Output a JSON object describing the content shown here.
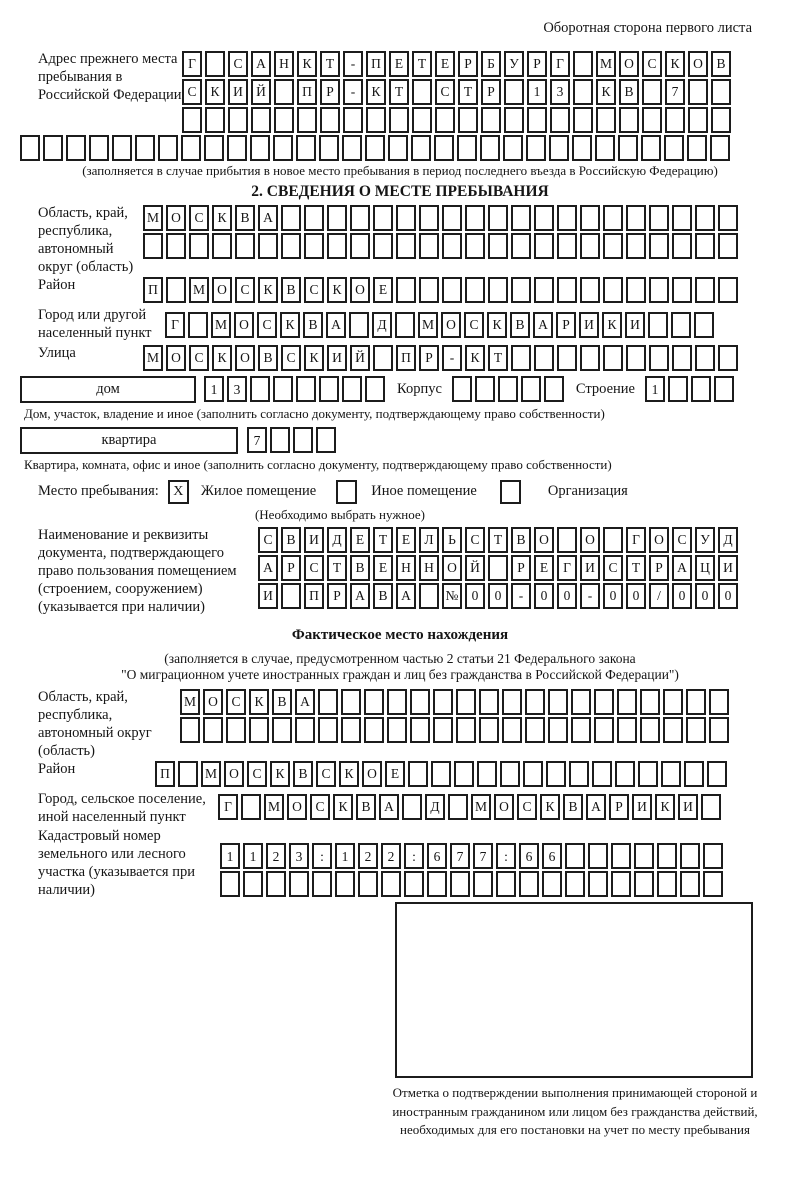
{
  "header": {
    "back_side_note": "Оборотная сторона первого листа"
  },
  "prev_address": {
    "label": "Адрес прежнего места пребывания в Российской Федерации",
    "rows": [
      [
        "Г",
        "",
        "С",
        "А",
        "Н",
        "К",
        "Т",
        "-",
        "П",
        "Е",
        "Т",
        "Е",
        "Р",
        "Б",
        "У",
        "Р",
        "Г",
        "",
        "М",
        "О",
        "С",
        "К",
        "О",
        "В"
      ],
      [
        "С",
        "К",
        "И",
        "Й",
        "",
        "П",
        "Р",
        "-",
        "К",
        "Т",
        "",
        "С",
        "Т",
        "Р",
        "",
        "1",
        "3",
        "",
        "К",
        "В",
        "",
        "7",
        "",
        ""
      ],
      [
        "",
        "",
        "",
        "",
        "",
        "",
        "",
        "",
        "",
        "",
        "",
        "",
        "",
        "",
        "",
        "",
        "",
        "",
        "",
        "",
        "",
        "",
        "",
        ""
      ]
    ],
    "overflow_row": [
      "",
      "",
      "",
      "",
      "",
      "",
      "",
      "",
      "",
      "",
      "",
      "",
      "",
      "",
      "",
      "",
      "",
      "",
      "",
      "",
      "",
      "",
      "",
      "",
      "",
      "",
      "",
      "",
      "",
      "",
      ""
    ],
    "note": "(заполняется в случае прибытия в новое место пребывания в период последнего въезда в Российскую Федерацию)"
  },
  "section2": {
    "title": "2. СВЕДЕНИЯ О МЕСТЕ ПРЕБЫВАНИЯ",
    "region": {
      "label": "Область, край, республика, автономный округ (область)",
      "rows": [
        [
          "М",
          "О",
          "С",
          "К",
          "В",
          "А",
          "",
          "",
          "",
          "",
          "",
          "",
          "",
          "",
          "",
          "",
          "",
          "",
          "",
          "",
          "",
          "",
          "",
          "",
          "",
          ""
        ],
        [
          "",
          "",
          "",
          "",
          "",
          "",
          "",
          "",
          "",
          "",
          "",
          "",
          "",
          "",
          "",
          "",
          "",
          "",
          "",
          "",
          "",
          "",
          "",
          "",
          "",
          ""
        ]
      ]
    },
    "district": {
      "label": "Район",
      "row": [
        "П",
        "",
        "М",
        "О",
        "С",
        "К",
        "В",
        "С",
        "К",
        "О",
        "Е",
        "",
        "",
        "",
        "",
        "",
        "",
        "",
        "",
        "",
        "",
        "",
        "",
        "",
        "",
        ""
      ]
    },
    "city": {
      "label": "Город или другой населенный пункт",
      "row": [
        "Г",
        "",
        "М",
        "О",
        "С",
        "К",
        "В",
        "А",
        "",
        "Д",
        "",
        "М",
        "О",
        "С",
        "К",
        "В",
        "А",
        "Р",
        "И",
        "К",
        "И",
        "",
        "",
        ""
      ]
    },
    "street": {
      "label": "Улица",
      "row": [
        "М",
        "О",
        "С",
        "К",
        "О",
        "В",
        "С",
        "К",
        "И",
        "Й",
        "",
        "П",
        "Р",
        "-",
        "К",
        "Т",
        "",
        "",
        "",
        "",
        "",
        "",
        "",
        "",
        "",
        ""
      ]
    },
    "house": {
      "box_label": "дом",
      "house_cells": [
        "1",
        "3",
        "",
        "",
        "",
        "",
        "",
        ""
      ],
      "korpus_label": "Корпус",
      "korpus_cells": [
        "",
        "",
        "",
        "",
        ""
      ],
      "stroenie_label": "Строение",
      "stroenie_cells": [
        "1",
        "",
        "",
        ""
      ],
      "caption": "Дом, участок, владение и иное (заполнить согласно документу, подтверждающему право собственности)"
    },
    "apartment": {
      "box_label": "квартира",
      "cells": [
        "7",
        "",
        "",
        ""
      ],
      "caption": "Квартира, комната, офис и иное (заполнить согласно документу, подтверждающему право собственности)"
    },
    "stay_type": {
      "lead": "Место пребывания:",
      "options": [
        {
          "label": "Жилое помещение",
          "mark": "X"
        },
        {
          "label": "Иное помещение",
          "mark": ""
        },
        {
          "label": "Организация",
          "mark": ""
        }
      ],
      "note": "(Необходимо выбрать нужное)"
    },
    "document": {
      "label": "Наименование и реквизиты документа, подтверждающего право пользования помещением (строением, сооружением) (указывается при наличии)",
      "rows": [
        [
          "С",
          "В",
          "И",
          "Д",
          "Е",
          "Т",
          "Е",
          "Л",
          "Ь",
          "С",
          "Т",
          "В",
          "О",
          "",
          "О",
          "",
          "Г",
          "О",
          "С",
          "У",
          "Д"
        ],
        [
          "А",
          "Р",
          "С",
          "Т",
          "В",
          "Е",
          "Н",
          "Н",
          "О",
          "Й",
          "",
          "Р",
          "Е",
          "Г",
          "И",
          "С",
          "Т",
          "Р",
          "А",
          "Ц",
          "И"
        ],
        [
          "И",
          "",
          "П",
          "Р",
          "А",
          "В",
          "А",
          "",
          "№",
          "0",
          "0",
          "-",
          "0",
          "0",
          "-",
          "0",
          "0",
          "/",
          "0",
          "0",
          "0"
        ]
      ]
    }
  },
  "actual_location": {
    "title": "Фактическое место нахождения",
    "note_line1": "(заполняется в случае, предусмотренном частью 2 статьи 21 Федерального закона",
    "note_line2": "\"О миграционном учете иностранных граждан и лиц без гражданства в Российской Федерации\")",
    "region": {
      "label": "Область, край, республика, автономный округ (область)",
      "rows": [
        [
          "М",
          "О",
          "С",
          "К",
          "В",
          "А",
          "",
          "",
          "",
          "",
          "",
          "",
          "",
          "",
          "",
          "",
          "",
          "",
          "",
          "",
          "",
          "",
          "",
          ""
        ],
        [
          "",
          "",
          "",
          "",
          "",
          "",
          "",
          "",
          "",
          "",
          "",
          "",
          "",
          "",
          "",
          "",
          "",
          "",
          "",
          "",
          "",
          "",
          "",
          ""
        ]
      ]
    },
    "district": {
      "label": "Район",
      "row": [
        "П",
        "",
        "М",
        "О",
        "С",
        "К",
        "В",
        "С",
        "К",
        "О",
        "Е",
        "",
        "",
        "",
        "",
        "",
        "",
        "",
        "",
        "",
        "",
        "",
        "",
        "",
        ""
      ]
    },
    "city": {
      "label": "Город, сельское поселение, иной населенный пункт",
      "row": [
        "Г",
        "",
        "М",
        "О",
        "С",
        "К",
        "В",
        "А",
        "",
        "Д",
        "",
        "М",
        "О",
        "С",
        "К",
        "В",
        "А",
        "Р",
        "И",
        "К",
        "И",
        ""
      ]
    },
    "cadastral": {
      "label": "Кадастровый номер земельного или лесного участка (указывается при наличии)",
      "rows": [
        [
          "1",
          "1",
          "2",
          "3",
          ":",
          "1",
          "2",
          "2",
          ":",
          "6",
          "7",
          "7",
          ":",
          "6",
          "6",
          "",
          "",
          "",
          "",
          "",
          "",
          ""
        ],
        [
          "",
          "",
          "",
          "",
          "",
          "",
          "",
          "",
          "",
          "",
          "",
          "",
          "",
          "",
          "",
          "",
          "",
          "",
          "",
          "",
          "",
          ""
        ]
      ]
    }
  },
  "stamp": {
    "caption": "Отметка о подтверждении выполнения принимающей стороной и иностранным гражданином или лицом без гражданства действий, необходимых для его постановки на учет по месту пребывания"
  }
}
